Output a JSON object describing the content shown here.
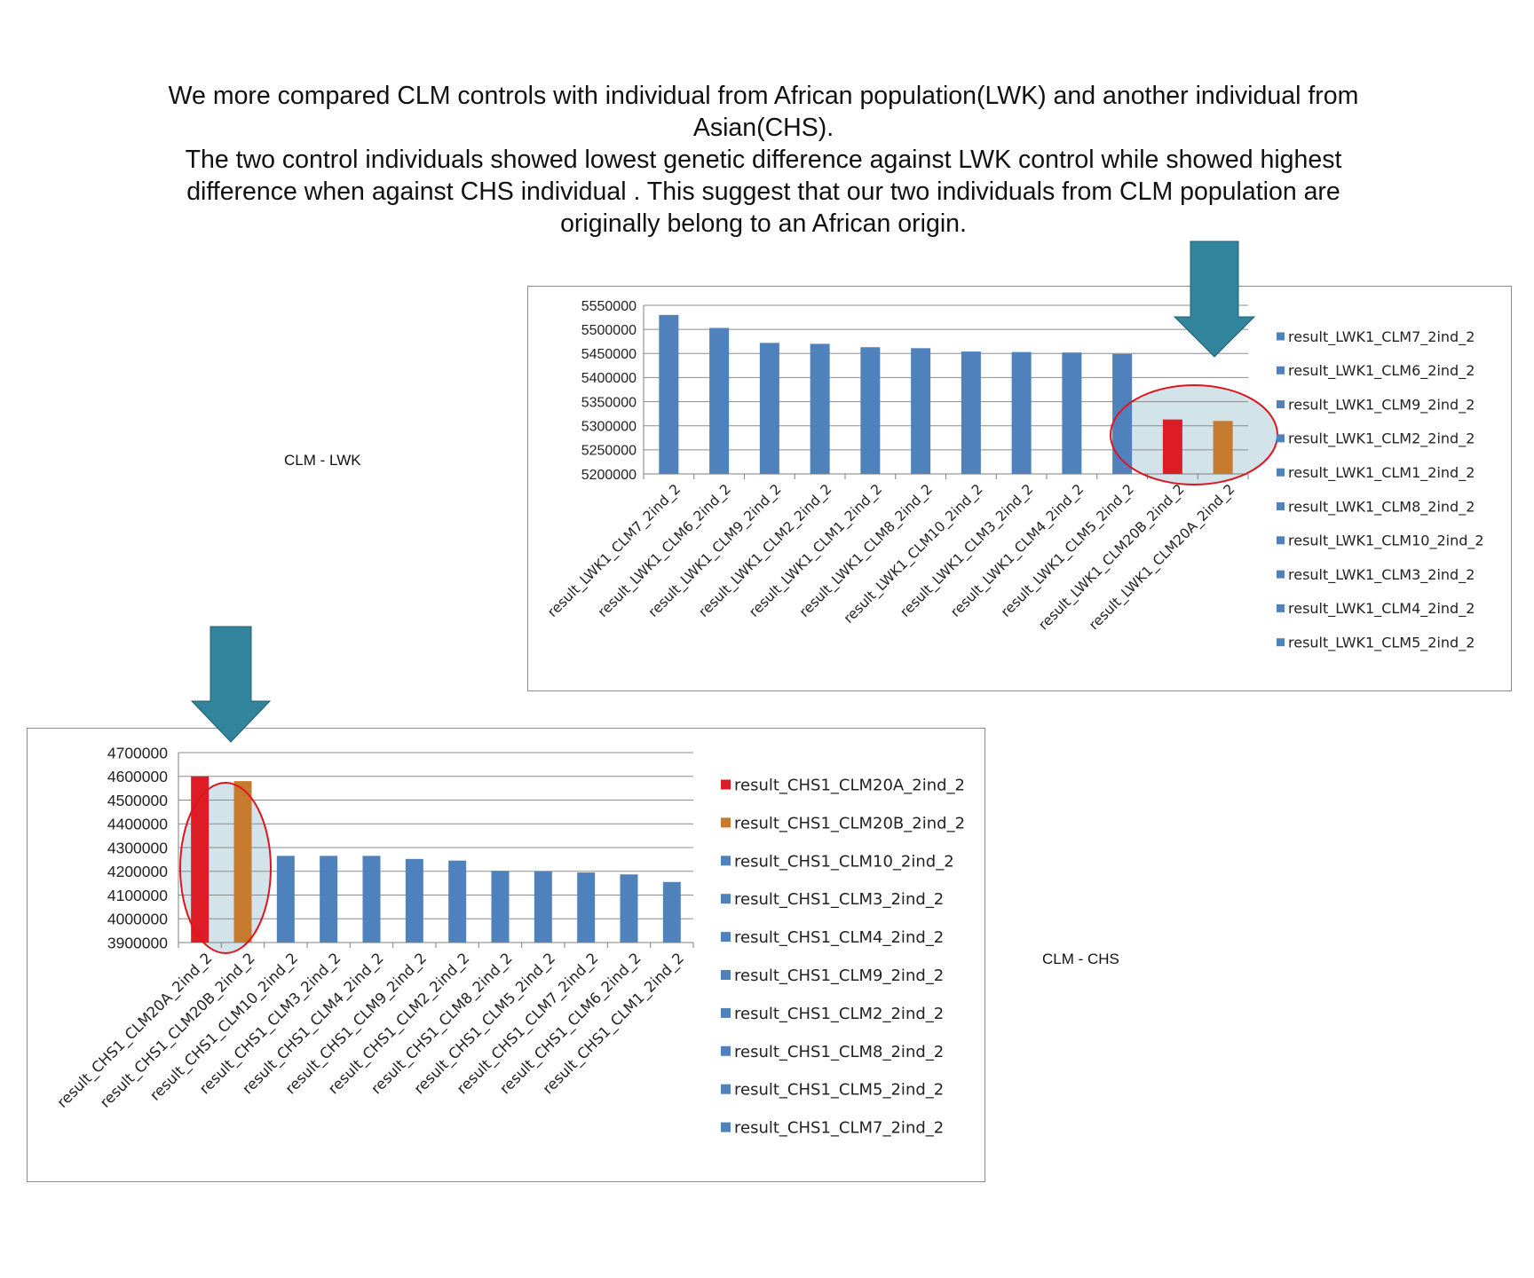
{
  "intro": {
    "line1": "We more compared CLM controls with individual from African population(LWK) and another individual from",
    "line2": "Asian(CHS).",
    "line3": "The two control individuals showed lowest genetic difference  against LWK control  while showed highest",
    "line4": "difference  when  against  CHS  individual . This suggest that our two individuals from CLM population are",
    "line5": "originally belong to an African origin."
  },
  "labels": {
    "lwk": "CLM - LWK",
    "chs": "CLM - CHS"
  },
  "colors": {
    "blue": "#4f81bd",
    "red": "#dd1c26",
    "orange": "#c67a2e",
    "arrow": "#31849b",
    "highlight_fill": "#d3e3ea",
    "ellipse": "#e0141e"
  },
  "chart_data": [
    {
      "type": "bar",
      "title": "CLM - LWK",
      "categories": [
        "result_LWK1_CLM7_2ind_2",
        "result_LWK1_CLM6_2ind_2",
        "result_LWK1_CLM9_2ind_2",
        "result_LWK1_CLM2_2ind_2",
        "result_LWK1_CLM1_2ind_2",
        "result_LWK1_CLM8_2ind_2",
        "result_LWK1_CLM10_2ind_2",
        "result_LWK1_CLM3_2ind_2",
        "result_LWK1_CLM4_2ind_2",
        "result_LWK1_CLM5_2ind_2",
        "result_LWK1_CLM20B_2ind_2",
        "result_LWK1_CLM20A_2ind_2"
      ],
      "values": [
        5530000,
        5503000,
        5472000,
        5470000,
        5463000,
        5461000,
        5454000,
        5453000,
        5452000,
        5449000,
        5313000,
        5310000
      ],
      "bar_colors": [
        "blue",
        "blue",
        "blue",
        "blue",
        "blue",
        "blue",
        "blue",
        "blue",
        "blue",
        "blue",
        "red",
        "orange"
      ],
      "ylim": [
        5200000,
        5550000
      ],
      "yticks": [
        "5200000",
        "5250000",
        "5300000",
        "5350000",
        "5400000",
        "5450000",
        "5500000",
        "5550000"
      ],
      "legend": [
        "result_LWK1_CLM7_2ind_2",
        "result_LWK1_CLM6_2ind_2",
        "result_LWK1_CLM9_2ind_2",
        "result_LWK1_CLM2_2ind_2",
        "result_LWK1_CLM1_2ind_2",
        "result_LWK1_CLM8_2ind_2",
        "result_LWK1_CLM10_2ind_2",
        "result_LWK1_CLM3_2ind_2",
        "result_LWK1_CLM4_2ind_2",
        "result_LWK1_CLM5_2ind_2"
      ],
      "legend_colors": [
        "blue",
        "blue",
        "blue",
        "blue",
        "blue",
        "blue",
        "blue",
        "blue",
        "blue",
        "blue"
      ],
      "legend_position": "right",
      "highlight_bars": [
        10,
        11
      ],
      "arrow_bars": [
        10,
        11
      ]
    },
    {
      "type": "bar",
      "title": "CLM - CHS",
      "categories": [
        "result_CHS1_CLM20A_2ind_2",
        "result_CHS1_CLM20B_2ind_2",
        "result_CHS1_CLM10_2ind_2",
        "result_CHS1_CLM3_2ind_2",
        "result_CHS1_CLM4_2ind_2",
        "result_CHS1_CLM9_2ind_2",
        "result_CHS1_CLM2_2ind_2",
        "result_CHS1_CLM8_2ind_2",
        "result_CHS1_CLM5_2ind_2",
        "result_CHS1_CLM7_2ind_2",
        "result_CHS1_CLM6_2ind_2",
        "result_CHS1_CLM1_2ind_2"
      ],
      "values": [
        4600000,
        4580000,
        4265000,
        4265000,
        4265000,
        4252000,
        4245000,
        4202000,
        4200000,
        4195000,
        4187000,
        4155000
      ],
      "bar_colors": [
        "red",
        "orange",
        "blue",
        "blue",
        "blue",
        "blue",
        "blue",
        "blue",
        "blue",
        "blue",
        "blue",
        "blue"
      ],
      "ylim": [
        3900000,
        4700000
      ],
      "yticks": [
        "3900000",
        "4000000",
        "4100000",
        "4200000",
        "4300000",
        "4400000",
        "4500000",
        "4600000",
        "4700000"
      ],
      "legend": [
        "result_CHS1_CLM20A_2ind_2",
        "result_CHS1_CLM20B_2ind_2",
        "result_CHS1_CLM10_2ind_2",
        "result_CHS1_CLM3_2ind_2",
        "result_CHS1_CLM4_2ind_2",
        "result_CHS1_CLM9_2ind_2",
        "result_CHS1_CLM2_2ind_2",
        "result_CHS1_CLM8_2ind_2",
        "result_CHS1_CLM5_2ind_2",
        "result_CHS1_CLM7_2ind_2"
      ],
      "legend_colors": [
        "red",
        "orange",
        "blue",
        "blue",
        "blue",
        "blue",
        "blue",
        "blue",
        "blue",
        "blue"
      ],
      "legend_position": "right",
      "highlight_bars": [
        0,
        1
      ],
      "arrow_bars": [
        0,
        1
      ]
    }
  ]
}
